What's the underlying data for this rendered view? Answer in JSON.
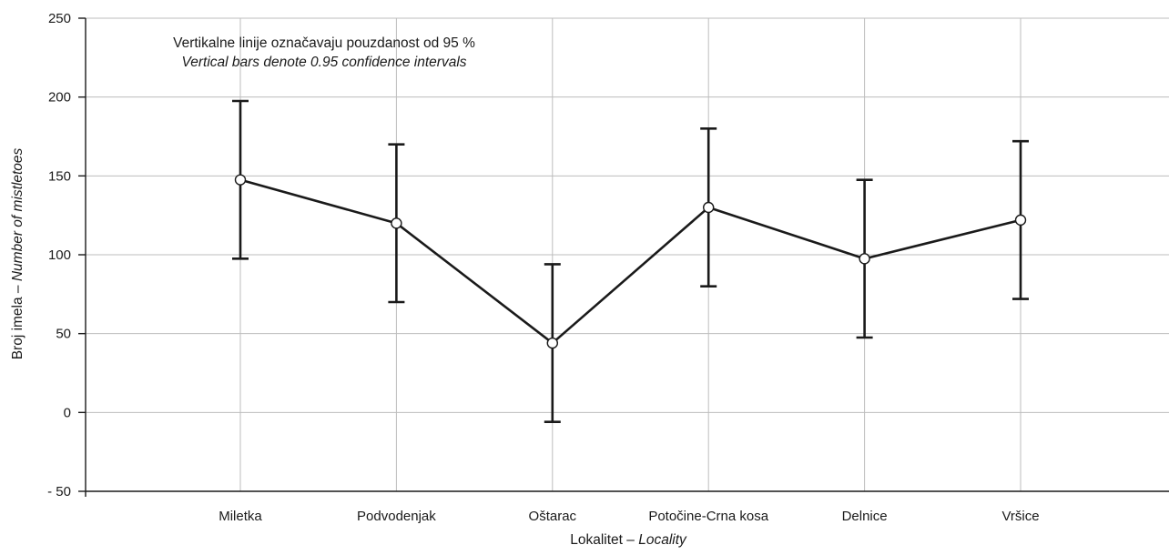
{
  "chart_data": {
    "type": "line",
    "categories": [
      "Miletka",
      "Podvodenjak",
      "Oštarac",
      "Potočine-Crna kosa",
      "Delnice",
      "Vršice"
    ],
    "series": [
      {
        "mean": [
          147.5,
          120,
          44,
          130,
          97.5,
          122
        ],
        "ci_lower": [
          97.5,
          70,
          -6,
          80,
          47.5,
          72
        ],
        "ci_upper": [
          197.5,
          170,
          94,
          180,
          147.5,
          172
        ]
      }
    ],
    "ylim": [
      -50,
      250
    ],
    "yticks": [
      -50,
      0,
      50,
      100,
      150,
      200,
      250
    ],
    "ytick_labels": [
      "- 50",
      "0",
      "50",
      "100",
      "150",
      "200",
      "250"
    ],
    "ylabel": "Broj imela – ",
    "ylabel_italic": "Number of mistletoes",
    "xlabel": "Lokalitet – ",
    "xlabel_italic": "Locality",
    "annotation_line1": "Vertikalne linije označavaju pouzdanost od 95 %",
    "annotation_line2": "Vertical bars denote 0.95 confidence intervals",
    "grid": true,
    "colors": {
      "line": "#1a1a1a",
      "grid": "#bdbdbd",
      "marker_fill": "#ffffff"
    }
  }
}
